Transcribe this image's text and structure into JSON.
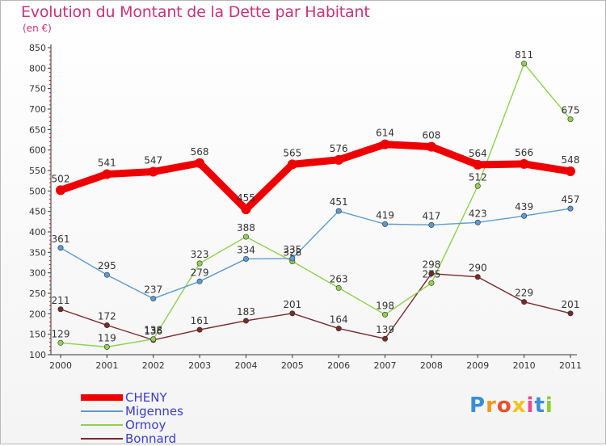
{
  "title": "Evolution du Montant de la Dette par Habitant",
  "subtitle": "(en €)",
  "logo": {
    "text": "Proxiti",
    "letters": [
      "P",
      "r",
      "o",
      "x",
      "i",
      "t",
      "i"
    ],
    "colors": [
      "#3a8fd8",
      "#f29a1f",
      "#e9502c",
      "#f6c21b",
      "#e94a8c",
      "#3a8fd8",
      "#8ccf33"
    ]
  },
  "chart_data": {
    "type": "line",
    "title": "Evolution du Montant de la Dette par Habitant",
    "ylabel": "(en €)",
    "x": [
      "2000",
      "2001",
      "2002",
      "2003",
      "2004",
      "2005",
      "2006",
      "2007",
      "2008",
      "2009",
      "2010",
      "2011"
    ],
    "ylim": [
      100,
      850
    ],
    "yticks": [
      100,
      150,
      200,
      250,
      300,
      350,
      400,
      450,
      500,
      550,
      600,
      650,
      700,
      750,
      800,
      850
    ],
    "grid": false,
    "legend_position": "bottom-left",
    "series": [
      {
        "name": "CHENY",
        "color": "#ee0000",
        "values": [
          502,
          541,
          547,
          568,
          455,
          565,
          576,
          614,
          608,
          564,
          566,
          548
        ],
        "labels": [
          "502",
          "541",
          "547",
          "568",
          "455",
          "565",
          "576",
          "614",
          "608",
          "564",
          "566",
          "548"
        ]
      },
      {
        "name": "Migennes",
        "color": "#5b9bd0",
        "values": [
          361,
          295,
          237,
          279,
          334,
          335,
          451,
          419,
          417,
          423,
          439,
          457
        ],
        "labels": [
          "361",
          "295",
          "237",
          "279",
          "334",
          "335",
          "451",
          "419",
          "417",
          "423",
          "439",
          "457"
        ]
      },
      {
        "name": "Ormoy",
        "color": "#8fd14f",
        "values": [
          129,
          119,
          138,
          323,
          388,
          328,
          263,
          198,
          275,
          512,
          811,
          675
        ],
        "labels": [
          "129",
          "119",
          "138",
          "323",
          "388",
          "328",
          "263",
          "198",
          "275",
          "512",
          "811",
          "675"
        ]
      },
      {
        "name": "Bonnard",
        "color": "#7a2a2a",
        "values": [
          211,
          172,
          136,
          161,
          183,
          201,
          164,
          139,
          298,
          290,
          229,
          201
        ],
        "labels": [
          "211",
          "172",
          "136",
          "161",
          "183",
          "201",
          "164",
          "139",
          "298",
          "290",
          "229",
          "201"
        ]
      }
    ]
  }
}
